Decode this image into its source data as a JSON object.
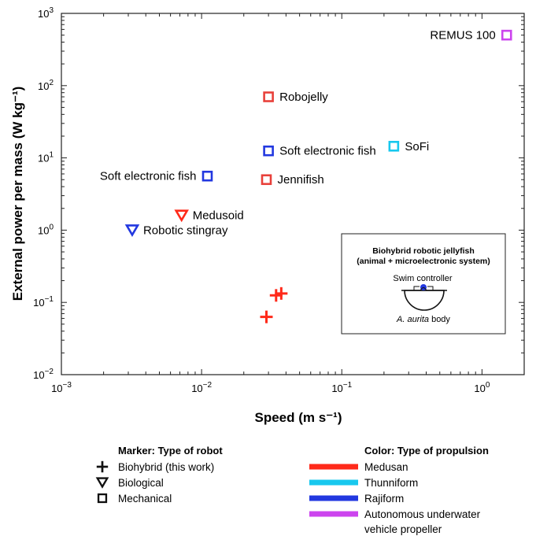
{
  "chart_data": {
    "type": "scatter",
    "xlabel": "Speed (m s⁻¹)",
    "ylabel": "External power per mass (W kg⁻¹)",
    "xscale": "log",
    "yscale": "log",
    "xlim": [
      0.001,
      2
    ],
    "ylim": [
      0.01,
      1000
    ],
    "x_ticks": [
      {
        "value": 0.001,
        "base": "10",
        "exp": "−3"
      },
      {
        "value": 0.01,
        "base": "10",
        "exp": "−2"
      },
      {
        "value": 0.1,
        "base": "10",
        "exp": "−1"
      },
      {
        "value": 1,
        "base": "10",
        "exp": "0"
      }
    ],
    "y_ticks": [
      {
        "value": 0.01,
        "base": "10",
        "exp": "−2"
      },
      {
        "value": 0.1,
        "base": "10",
        "exp": "−1"
      },
      {
        "value": 1,
        "base": "10",
        "exp": "0"
      },
      {
        "value": 10,
        "base": "10",
        "exp": "1"
      },
      {
        "value": 100,
        "base": "10",
        "exp": "2"
      },
      {
        "value": 1000,
        "base": "10",
        "exp": "3"
      }
    ],
    "points": [
      {
        "label": "REMUS 100",
        "x": 1.5,
        "y": 500,
        "marker": "square",
        "propulsion": "autonomous",
        "label_side": "left"
      },
      {
        "label": "Robojelly",
        "x": 0.03,
        "y": 70,
        "marker": "square",
        "propulsion": "medusan",
        "label_side": "right"
      },
      {
        "label": "Soft electronic fish",
        "x": 0.03,
        "y": 12.5,
        "marker": "square",
        "propulsion": "rajiform",
        "label_side": "right"
      },
      {
        "label": "SoFi",
        "x": 0.235,
        "y": 14.5,
        "marker": "square",
        "propulsion": "thunniform",
        "label_side": "right"
      },
      {
        "label": "Soft electronic fish",
        "x": 0.011,
        "y": 5.6,
        "marker": "square",
        "propulsion": "rajiform",
        "label_side": "left"
      },
      {
        "label": "Jennifish",
        "x": 0.029,
        "y": 5.0,
        "marker": "square",
        "propulsion": "medusan",
        "label_side": "right"
      },
      {
        "label": "Medusoid",
        "x": 0.0072,
        "y": 1.6,
        "marker": "triangle",
        "propulsion": "medusan",
        "label_side": "right"
      },
      {
        "label": "Robotic stingray",
        "x": 0.0032,
        "y": 1.0,
        "marker": "triangle",
        "propulsion": "rajiform",
        "label_side": "right"
      },
      {
        "label": "",
        "x": 0.034,
        "y": 0.125,
        "marker": "plus",
        "propulsion": "medusan",
        "label_side": "none"
      },
      {
        "label": "",
        "x": 0.037,
        "y": 0.133,
        "marker": "plus",
        "propulsion": "medusan",
        "label_side": "none"
      },
      {
        "label": "",
        "x": 0.029,
        "y": 0.063,
        "marker": "plus",
        "propulsion": "medusan",
        "label_side": "none"
      }
    ],
    "inset": {
      "title_line1": "Biohybrid robotic jellyfish",
      "title_line2": "(animal + microelectronic system)",
      "controller_label": "Swim controller",
      "body_label_italic": "A. aurita",
      "body_label_rest": " body"
    },
    "legend_markers": {
      "title": "Marker: Type of robot",
      "items": [
        {
          "marker": "plus",
          "label": "Biohybrid (this work)"
        },
        {
          "marker": "triangle",
          "label": "Biological"
        },
        {
          "marker": "square",
          "label": "Mechanical"
        }
      ]
    },
    "legend_colors": {
      "title": "Color: Type of propulsion",
      "items": [
        {
          "key": "medusan",
          "label": "Medusan"
        },
        {
          "key": "thunniform",
          "label": "Thunniform"
        },
        {
          "key": "rajiform",
          "label": "Rajiform"
        },
        {
          "key": "autonomous",
          "label": "Autonomous underwater",
          "label2": "vehicle propeller"
        }
      ]
    },
    "colors": {
      "medusan": "#ff2a1a",
      "medusan_square": "#e8403a",
      "thunniform": "#18c8ee",
      "rajiform": "#2238e0",
      "autonomous": "#cc44ee",
      "axis": "#222222"
    }
  }
}
